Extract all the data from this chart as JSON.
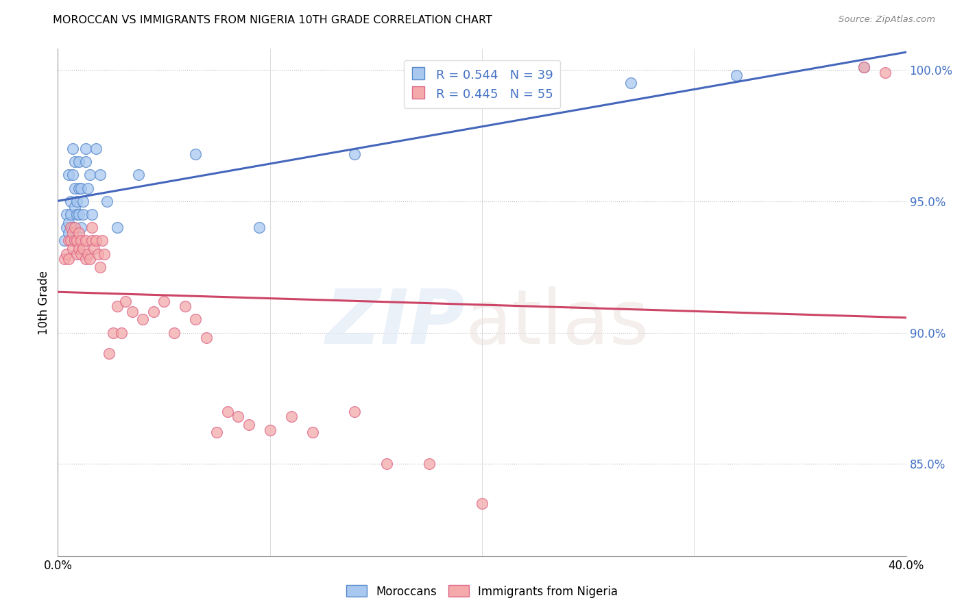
{
  "title": "MOROCCAN VS IMMIGRANTS FROM NIGERIA 10TH GRADE CORRELATION CHART",
  "source": "Source: ZipAtlas.com",
  "ylabel": "10th Grade",
  "xmin": 0.0,
  "xmax": 0.4,
  "ymin": 0.815,
  "ymax": 1.008,
  "yticks": [
    0.85,
    0.9,
    0.95,
    1.0
  ],
  "ytick_labels": [
    "85.0%",
    "90.0%",
    "95.0%",
    "100.0%"
  ],
  "legend_blue_r": "R = 0.544",
  "legend_blue_n": "N = 39",
  "legend_pink_r": "R = 0.445",
  "legend_pink_n": "N = 55",
  "blue_scatter_color": "#a8c8f0",
  "blue_edge_color": "#5588cc",
  "pink_scatter_color": "#f4aaaa",
  "pink_edge_color": "#dd6688",
  "blue_line_color": "#4466bb",
  "pink_line_color": "#cc4466",
  "moroccan_x": [
    0.003,
    0.004,
    0.004,
    0.005,
    0.005,
    0.005,
    0.006,
    0.006,
    0.007,
    0.007,
    0.007,
    0.008,
    0.008,
    0.008,
    0.009,
    0.009,
    0.01,
    0.01,
    0.01,
    0.011,
    0.011,
    0.012,
    0.012,
    0.013,
    0.013,
    0.014,
    0.015,
    0.016,
    0.018,
    0.02,
    0.023,
    0.028,
    0.038,
    0.065,
    0.095,
    0.14,
    0.27,
    0.32,
    0.38
  ],
  "moroccan_y": [
    0.935,
    0.94,
    0.945,
    0.938,
    0.942,
    0.96,
    0.945,
    0.95,
    0.94,
    0.96,
    0.97,
    0.948,
    0.955,
    0.965,
    0.945,
    0.95,
    0.945,
    0.955,
    0.965,
    0.94,
    0.955,
    0.945,
    0.95,
    0.965,
    0.97,
    0.955,
    0.96,
    0.945,
    0.97,
    0.96,
    0.95,
    0.94,
    0.96,
    0.968,
    0.94,
    0.968,
    0.995,
    0.998,
    1.001
  ],
  "nigeria_x": [
    0.003,
    0.004,
    0.005,
    0.005,
    0.006,
    0.006,
    0.007,
    0.007,
    0.008,
    0.008,
    0.009,
    0.009,
    0.01,
    0.01,
    0.011,
    0.011,
    0.012,
    0.013,
    0.013,
    0.014,
    0.015,
    0.016,
    0.016,
    0.017,
    0.018,
    0.019,
    0.02,
    0.021,
    0.022,
    0.024,
    0.026,
    0.028,
    0.03,
    0.032,
    0.035,
    0.04,
    0.045,
    0.05,
    0.055,
    0.06,
    0.065,
    0.07,
    0.075,
    0.08,
    0.085,
    0.09,
    0.1,
    0.11,
    0.12,
    0.14,
    0.155,
    0.175,
    0.2,
    0.38,
    0.39
  ],
  "nigeria_y": [
    0.928,
    0.93,
    0.928,
    0.935,
    0.935,
    0.94,
    0.932,
    0.938,
    0.935,
    0.94,
    0.93,
    0.935,
    0.932,
    0.938,
    0.93,
    0.935,
    0.932,
    0.928,
    0.935,
    0.93,
    0.928,
    0.935,
    0.94,
    0.932,
    0.935,
    0.93,
    0.925,
    0.935,
    0.93,
    0.892,
    0.9,
    0.91,
    0.9,
    0.912,
    0.908,
    0.905,
    0.908,
    0.912,
    0.9,
    0.91,
    0.905,
    0.898,
    0.862,
    0.87,
    0.868,
    0.865,
    0.863,
    0.868,
    0.862,
    0.87,
    0.85,
    0.85,
    0.835,
    1.001,
    0.999
  ]
}
